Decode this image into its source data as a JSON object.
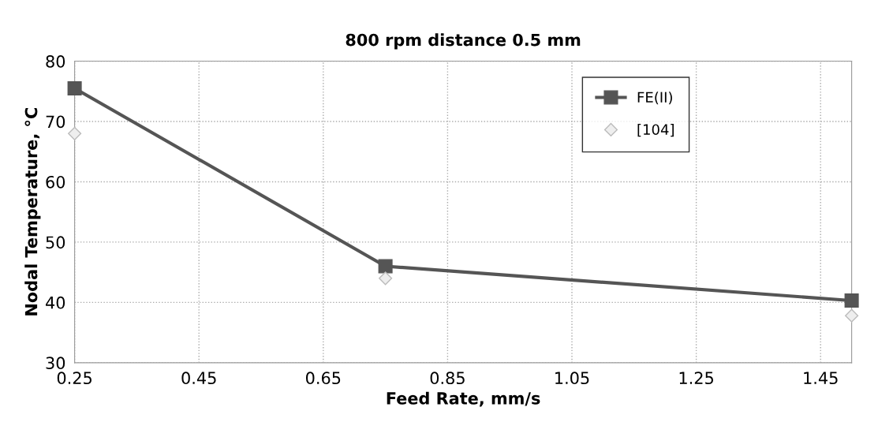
{
  "chart_data": {
    "type": "line",
    "title": "800 rpm distance 0.5 mm",
    "xlabel": "Feed Rate, mm/s",
    "ylabel": "Nodal Temperature, °C",
    "x": [
      0.25,
      0.75,
      1.5
    ],
    "series": [
      {
        "name": "FE(II)",
        "color": "#555555",
        "values": [
          75.5,
          46,
          40.3
        ],
        "marker": "square"
      },
      {
        "name": "[104]",
        "color": "#bbbbbb",
        "values": [
          68,
          44,
          37.8
        ],
        "type": "scatter",
        "marker": "diamond"
      }
    ],
    "xlim": [
      0.25,
      1.5
    ],
    "xticks": [
      0.25,
      0.45,
      0.65,
      0.85,
      1.05,
      1.25,
      1.45
    ],
    "ylim": [
      30,
      80
    ],
    "yticks": [
      30,
      40,
      50,
      60,
      70,
      80
    ],
    "grid": true,
    "legend": "top right"
  }
}
